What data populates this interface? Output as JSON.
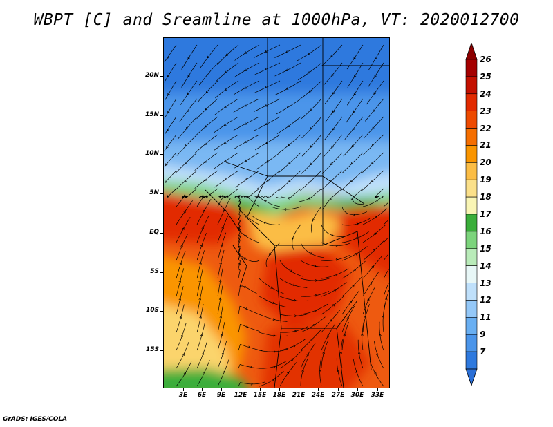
{
  "title": "WBPT [C] and Sreamline at 1000hPa, VT: 2020012700",
  "credit": "GrADS: IGES/COLA",
  "map": {
    "y_labels": [
      "20N",
      "15N",
      "10N",
      "5N",
      "EQ",
      "5S",
      "10S",
      "15S"
    ],
    "x_labels": [
      "3E",
      "6E",
      "9E",
      "12E",
      "15E",
      "18E",
      "21E",
      "24E",
      "27E",
      "30E",
      "33E"
    ]
  },
  "colorbar": {
    "labels": [
      "26",
      "25",
      "24",
      "23",
      "22",
      "21",
      "20",
      "19",
      "18",
      "17",
      "16",
      "15",
      "14",
      "13",
      "12",
      "11",
      "9",
      "7"
    ],
    "colors": [
      "#a50000",
      "#c41000",
      "#e22a00",
      "#ee4a00",
      "#f56e00",
      "#fa9500",
      "#fbbd45",
      "#fbe08a",
      "#f9f5b5",
      "#3aae3a",
      "#7cd47c",
      "#b9ebb9",
      "#e8f7f7",
      "#bfe0fb",
      "#94c8f8",
      "#69aff2",
      "#4b95ea",
      "#2e79de"
    ],
    "top_arrow_color": "#8b0000",
    "bottom_arrow_color": "#2a6fd6"
  }
}
